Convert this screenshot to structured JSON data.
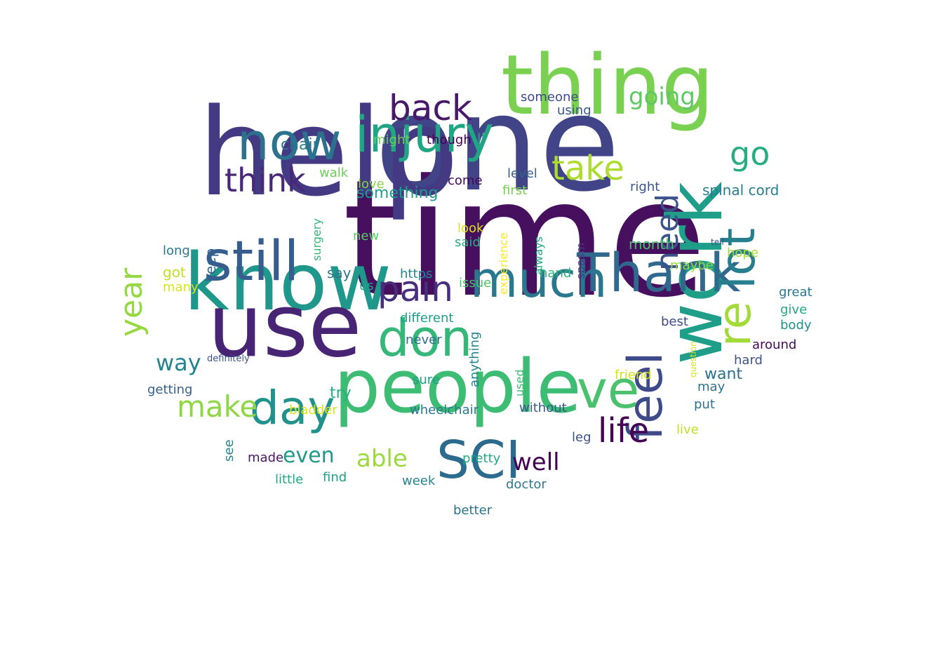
{
  "words": [
    {
      "text": "time",
      "color": "#46105f",
      "vertical": false
    },
    {
      "text": "one",
      "color": "#414487",
      "vertical": false
    },
    {
      "text": "help",
      "color": "#433a83",
      "vertical": false
    },
    {
      "text": "thing",
      "color": "#7ad151",
      "vertical": false
    },
    {
      "text": "know",
      "color": "#1f988b",
      "vertical": false
    },
    {
      "text": "use",
      "color": "#482475",
      "vertical": false
    },
    {
      "text": "people",
      "color": "#3dbc74",
      "vertical": false
    },
    {
      "text": "injury",
      "color": "#21a685",
      "vertical": false
    },
    {
      "text": "work",
      "color": "#1f9e89",
      "vertical": true
    },
    {
      "text": "Thank",
      "color": "#31688e",
      "vertical": false
    },
    {
      "text": "still",
      "color": "#365d8d",
      "vertical": false
    },
    {
      "text": "now",
      "color": "#2c728e",
      "vertical": false
    },
    {
      "text": "much",
      "color": "#2a788e",
      "vertical": false
    },
    {
      "text": "re",
      "color": "#a2da37",
      "vertical": true
    },
    {
      "text": "lot",
      "color": "#277f8e",
      "vertical": true
    },
    {
      "text": "SCI",
      "color": "#2c6b8e",
      "vertical": false
    },
    {
      "text": "don",
      "color": "#35b779",
      "vertical": false
    },
    {
      "text": "ve",
      "color": "#4ac16d",
      "vertical": false
    },
    {
      "text": "day",
      "color": "#21918c",
      "vertical": false
    },
    {
      "text": "feel",
      "color": "#3e4a89",
      "vertical": true
    },
    {
      "text": "pain",
      "color": "#472f7d",
      "vertical": false
    },
    {
      "text": "back",
      "color": "#48186a",
      "vertical": false
    },
    {
      "text": "take",
      "color": "#addc30",
      "vertical": false
    },
    {
      "text": "life",
      "color": "#440154",
      "vertical": false
    },
    {
      "text": "think",
      "color": "#482878",
      "vertical": false
    },
    {
      "text": "need",
      "color": "#3b528b",
      "vertical": true
    },
    {
      "text": "go",
      "color": "#27ad81",
      "vertical": false
    },
    {
      "text": "make",
      "color": "#8fd744",
      "vertical": false
    },
    {
      "text": "year",
      "color": "#95d840",
      "vertical": true
    },
    {
      "text": "going",
      "color": "#5ec962",
      "vertical": false
    },
    {
      "text": "well",
      "color": "#440154",
      "vertical": false
    },
    {
      "text": "able",
      "color": "#9bd93c",
      "vertical": false
    },
    {
      "text": "even",
      "color": "#1f9a8a",
      "vertical": false
    },
    {
      "text": "way",
      "color": "#25858e",
      "vertical": false
    },
    {
      "text": "something",
      "color": "#1e9b8a",
      "vertical": false
    },
    {
      "text": "want",
      "color": "#2d708e",
      "vertical": false
    },
    {
      "text": "someone",
      "color": "#3e4c8a",
      "vertical": false
    },
    {
      "text": "using",
      "color": "#38588c",
      "vertical": false
    },
    {
      "text": "might",
      "color": "#6ece58",
      "vertical": false
    },
    {
      "text": "though",
      "color": "#440154",
      "vertical": false
    },
    {
      "text": "ll",
      "color": "#20a386",
      "vertical": false
    },
    {
      "text": "chair",
      "color": "#2a788e",
      "vertical": false
    },
    {
      "text": "walk",
      "color": "#6ece58",
      "vertical": false
    },
    {
      "text": "love",
      "color": "#86d549",
      "vertical": false
    },
    {
      "text": "come",
      "color": "#46085c",
      "vertical": false
    },
    {
      "text": "level",
      "color": "#355f8d",
      "vertical": false
    },
    {
      "text": "right",
      "color": "#3b528b",
      "vertical": false
    },
    {
      "text": "spinal cord",
      "color": "#287d8e",
      "vertical": false
    },
    {
      "text": "first",
      "color": "#75d054",
      "vertical": false
    },
    {
      "text": "surgery",
      "color": "#34b679",
      "vertical": true
    },
    {
      "text": "look",
      "color": "#d8e219",
      "vertical": false
    },
    {
      "text": "said",
      "color": "#29af7f",
      "vertical": false
    },
    {
      "text": "experience",
      "color": "#fde725",
      "vertical": true
    },
    {
      "text": "always",
      "color": "#22a884",
      "vertical": true
    },
    {
      "text": "spasm",
      "color": "#443983",
      "vertical": true
    },
    {
      "text": "tell",
      "color": "#3b528b",
      "vertical": false
    },
    {
      "text": "new",
      "color": "#5ec962",
      "vertical": false
    },
    {
      "text": "keep",
      "color": "#32648e",
      "vertical": true
    },
    {
      "text": "long",
      "color": "#2a788e",
      "vertical": false
    },
    {
      "text": "month",
      "color": "#4ac16d",
      "vertical": false
    },
    {
      "text": "hope",
      "color": "#a5db36",
      "vertical": false
    },
    {
      "text": "got",
      "color": "#c0df25",
      "vertical": false
    },
    {
      "text": "maybe",
      "color": "#95d840",
      "vertical": false
    },
    {
      "text": "say",
      "color": "#2a788e",
      "vertical": false
    },
    {
      "text": "https",
      "color": "#24868e",
      "vertical": false
    },
    {
      "text": "hand",
      "color": "#2db27d",
      "vertical": false
    },
    {
      "text": "many",
      "color": "#dae319",
      "vertical": false
    },
    {
      "text": "us",
      "color": "#1fa287",
      "vertical": false
    },
    {
      "text": "issue",
      "color": "#4ac16d",
      "vertical": false
    },
    {
      "text": "great",
      "color": "#2a788e",
      "vertical": false
    },
    {
      "text": "give",
      "color": "#22a884",
      "vertical": false
    },
    {
      "text": "different",
      "color": "#1f9e89",
      "vertical": false
    },
    {
      "text": "best",
      "color": "#3e4989",
      "vertical": false
    },
    {
      "text": "body",
      "color": "#20928c",
      "vertical": false
    },
    {
      "text": "anything",
      "color": "#25838e",
      "vertical": true
    },
    {
      "text": "question",
      "color": "#d5e21a",
      "vertical": true
    },
    {
      "text": "never",
      "color": "#2e6e8e",
      "vertical": false
    },
    {
      "text": "around",
      "color": "#46085c",
      "vertical": false
    },
    {
      "text": "definitely",
      "color": "#3b528b",
      "vertical": false
    },
    {
      "text": "hard",
      "color": "#3b528b",
      "vertical": false
    },
    {
      "text": "used",
      "color": "#3dbc74",
      "vertical": true
    },
    {
      "text": "friend",
      "color": "#d2e21b",
      "vertical": false
    },
    {
      "text": "sure",
      "color": "#1f9e89",
      "vertical": false
    },
    {
      "text": "getting",
      "color": "#355f8d",
      "vertical": false
    },
    {
      "text": "may",
      "color": "#2c728e",
      "vertical": false
    },
    {
      "text": "try",
      "color": "#29af7f",
      "vertical": false
    },
    {
      "text": "put",
      "color": "#2c728e",
      "vertical": false
    },
    {
      "text": "bladder",
      "color": "#dde318",
      "vertical": false
    },
    {
      "text": "wheelchair",
      "color": "#2a788e",
      "vertical": false
    },
    {
      "text": "without",
      "color": "#38588c",
      "vertical": false
    },
    {
      "text": "live",
      "color": "#c2df23",
      "vertical": false
    },
    {
      "text": "see",
      "color": "#26828e",
      "vertical": true
    },
    {
      "text": "leg",
      "color": "#3b528b",
      "vertical": false
    },
    {
      "text": "made",
      "color": "#481769",
      "vertical": false
    },
    {
      "text": "pretty",
      "color": "#22a884",
      "vertical": false
    },
    {
      "text": "little",
      "color": "#22a884",
      "vertical": false
    },
    {
      "text": "find",
      "color": "#1f9e89",
      "vertical": false
    },
    {
      "text": "week",
      "color": "#25848e",
      "vertical": false
    },
    {
      "text": "doctor",
      "color": "#2a788e",
      "vertical": false
    },
    {
      "text": "better",
      "color": "#2c728e",
      "vertical": false
    }
  ]
}
